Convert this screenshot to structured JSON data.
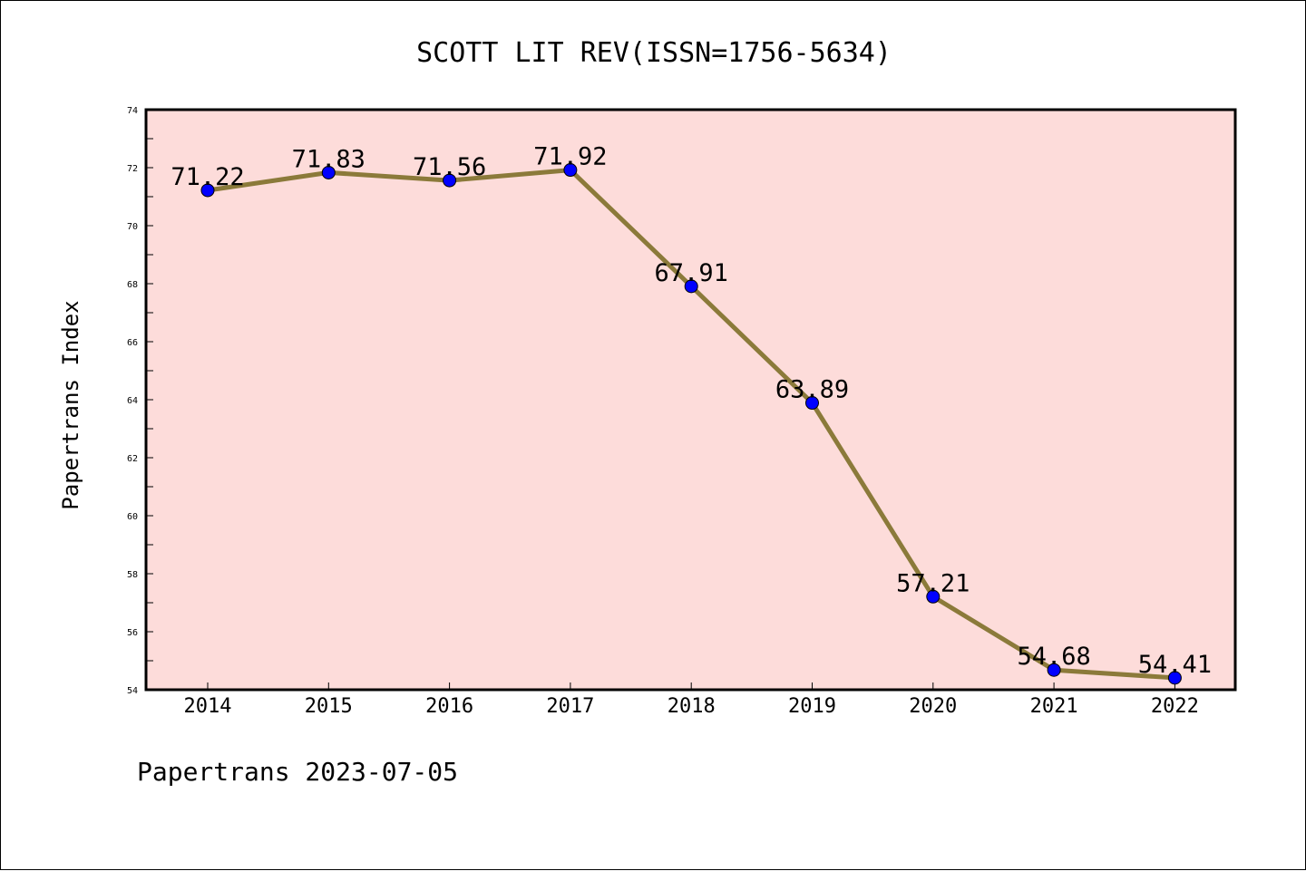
{
  "chart_data": {
    "type": "line",
    "title": "SCOTT LIT REV(ISSN=1756-5634)",
    "xlabel": "",
    "ylabel": "Papertrans Index",
    "categories": [
      "2014",
      "2015",
      "2016",
      "2017",
      "2018",
      "2019",
      "2020",
      "2021",
      "2022"
    ],
    "series": [
      {
        "values": [
          71.22,
          71.83,
          71.56,
          71.92,
          67.91,
          63.89,
          57.21,
          54.68,
          54.41
        ],
        "labels": [
          "71.22",
          "71.83",
          "71.56",
          "71.92",
          "67.91",
          "63.89",
          "57.21",
          "54.68",
          "54.41"
        ]
      }
    ],
    "ylim": [
      54,
      74
    ],
    "yticks": [
      "54",
      "56",
      "58",
      "60",
      "62",
      "64",
      "66",
      "68",
      "70",
      "72",
      "74"
    ],
    "grid": false,
    "colors": {
      "plot_background": "#fddcda",
      "line": "#8b7a3a",
      "marker": "#0000ff"
    }
  },
  "footer": "Papertrans 2023-07-05"
}
